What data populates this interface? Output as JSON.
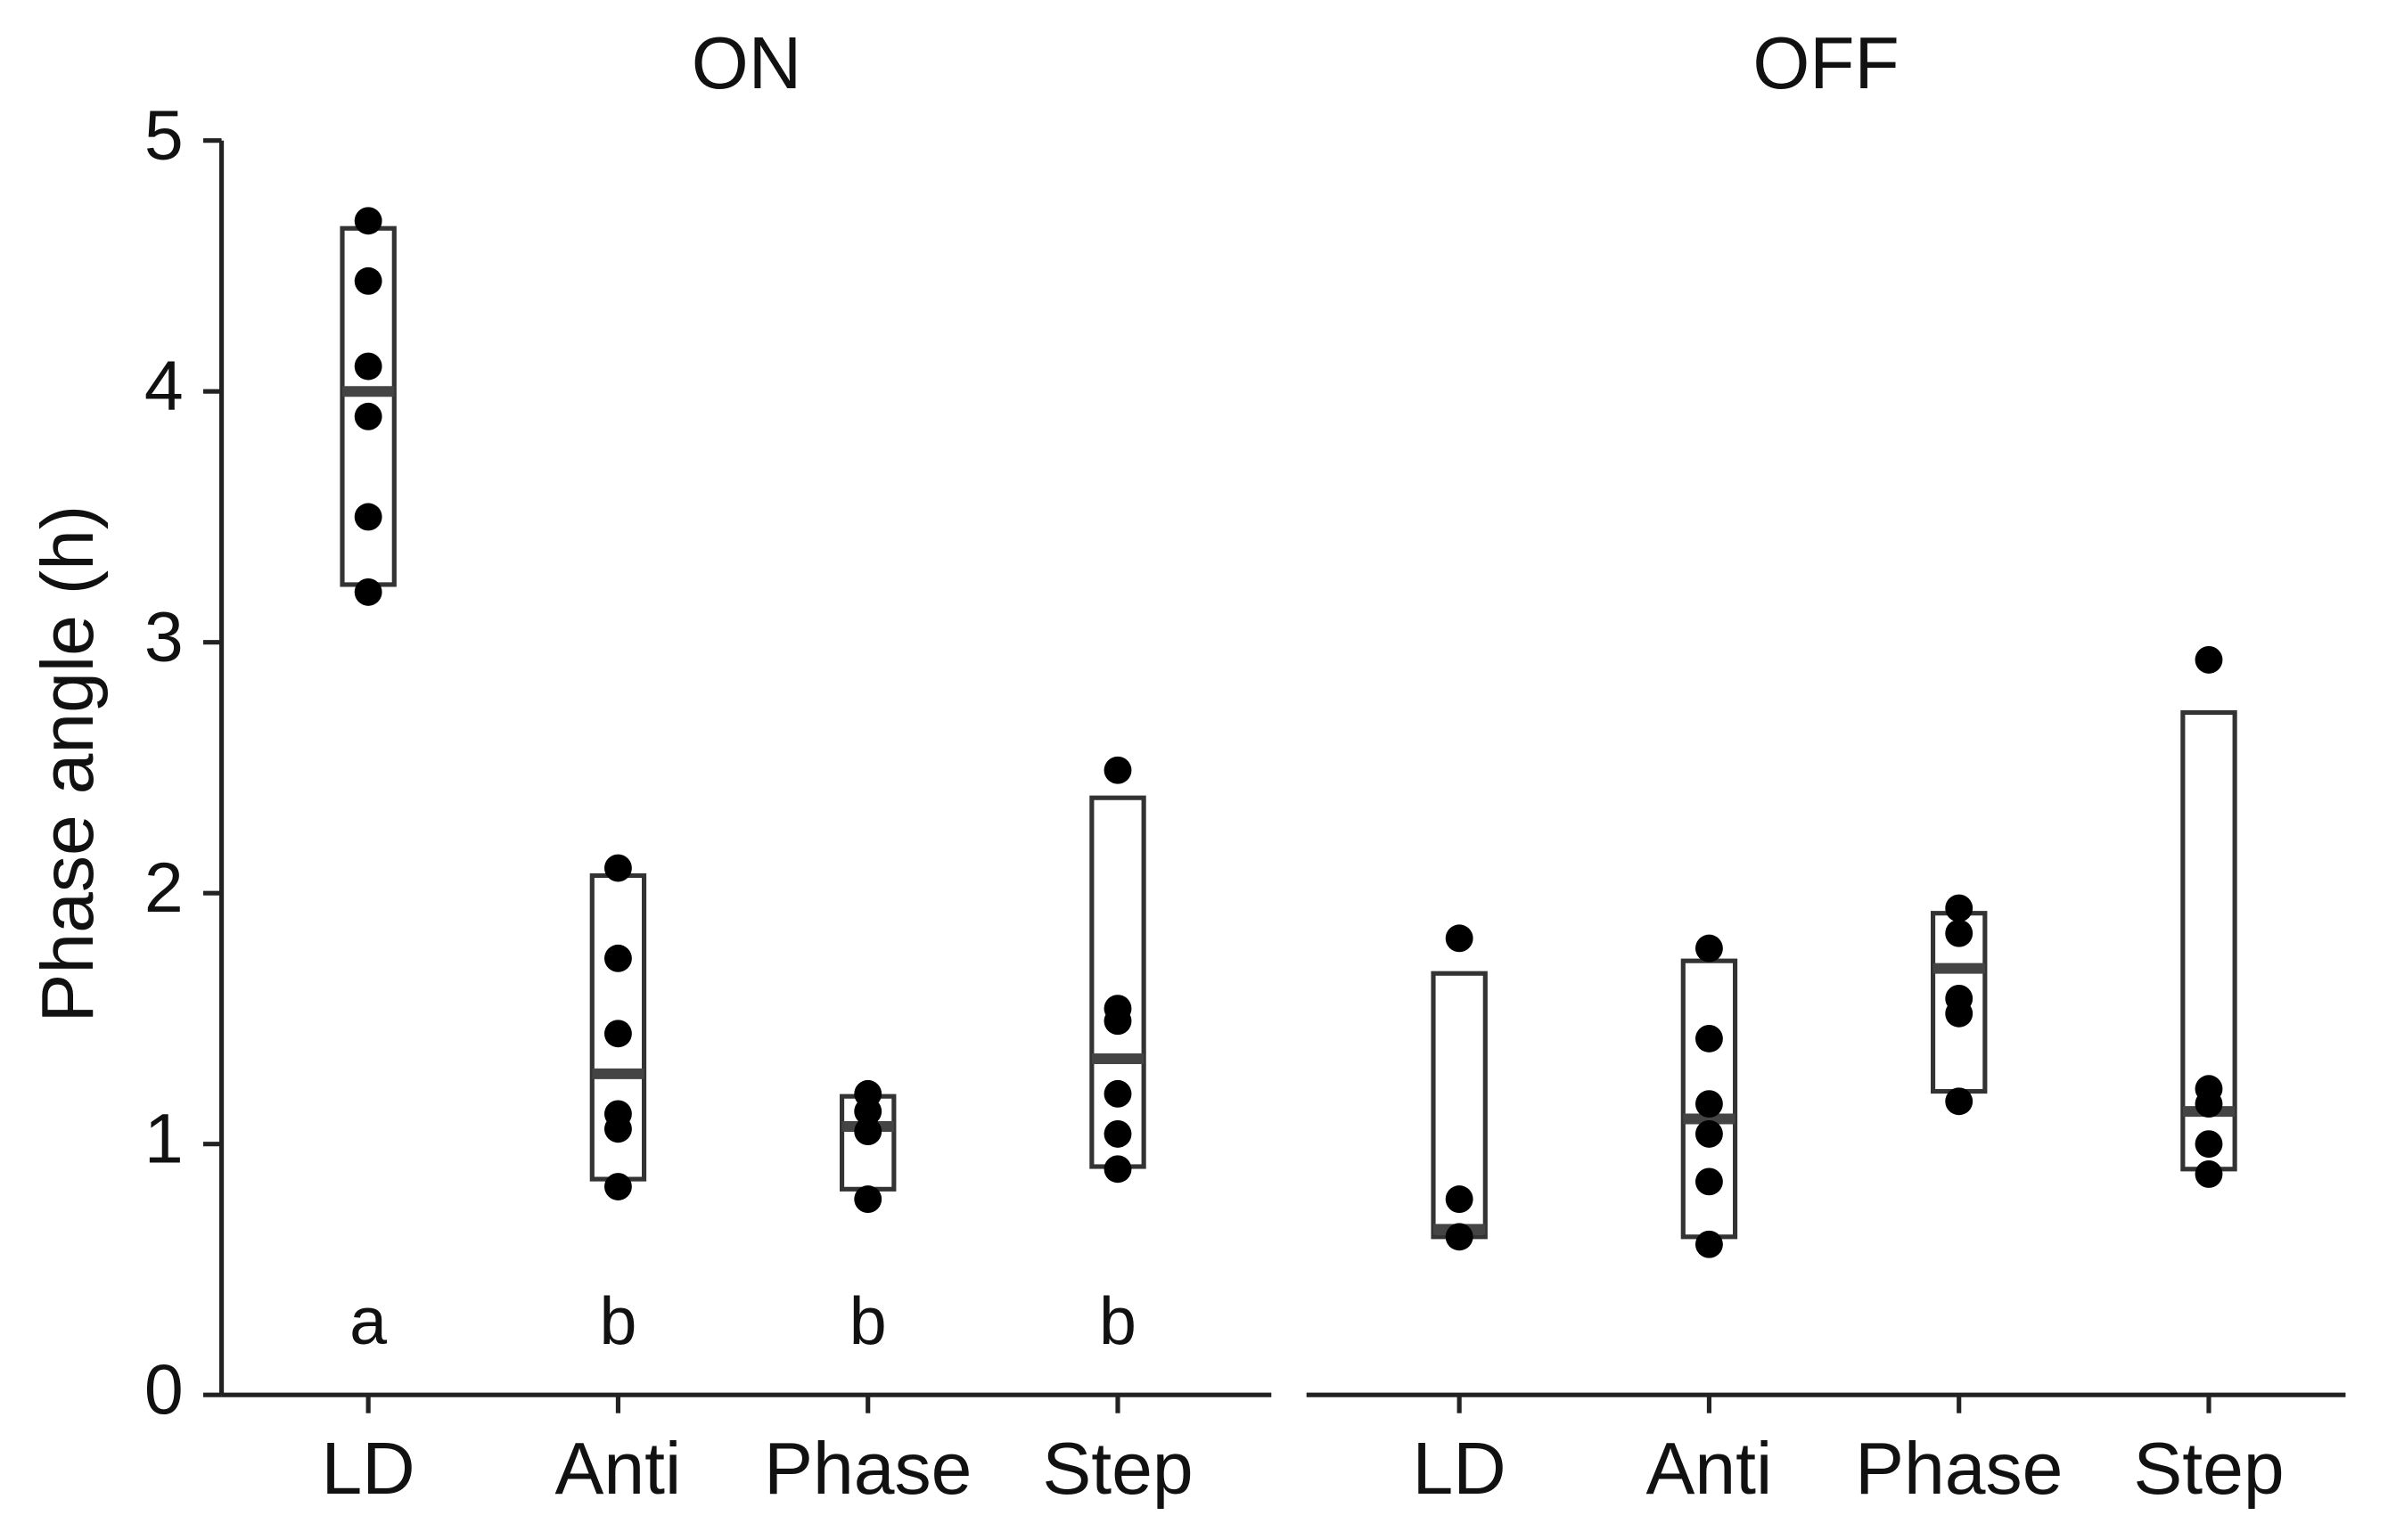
{
  "chart_data": {
    "type": "box",
    "ylabel": "Phase angle (h)",
    "ylim": [
      0,
      5
    ],
    "yticks": [
      0,
      1,
      2,
      3,
      4,
      5
    ],
    "panels": [
      {
        "title": "ON",
        "categories": [
          "LD",
          "Anti",
          "Phase",
          "Step"
        ],
        "letters": [
          "a",
          "b",
          "b",
          "b"
        ],
        "boxes": [
          {
            "low": 3.23,
            "high": 4.65,
            "median": 4.0,
            "points": [
              4.68,
              4.44,
              4.1,
              3.9,
              3.5,
              3.2
            ]
          },
          {
            "low": 0.86,
            "high": 2.07,
            "median": 1.28,
            "points": [
              2.1,
              1.74,
              1.44,
              1.12,
              1.06,
              0.83
            ]
          },
          {
            "low": 0.82,
            "high": 1.19,
            "median": 1.07,
            "points": [
              1.2,
              1.13,
              1.05,
              0.78
            ]
          },
          {
            "low": 0.91,
            "high": 2.38,
            "median": 1.34,
            "points": [
              2.49,
              1.54,
              1.49,
              1.2,
              1.04,
              0.9
            ]
          }
        ]
      },
      {
        "title": "OFF",
        "categories": [
          "LD",
          "Anti",
          "Phase",
          "Step"
        ],
        "boxes": [
          {
            "low": 0.63,
            "high": 1.68,
            "median": 0.66,
            "points": [
              1.82,
              0.78,
              0.63
            ]
          },
          {
            "low": 0.63,
            "high": 1.73,
            "median": 1.1,
            "points": [
              1.78,
              1.42,
              1.16,
              1.04,
              0.85,
              0.6
            ]
          },
          {
            "low": 1.21,
            "high": 1.92,
            "median": 1.7,
            "points": [
              1.94,
              1.84,
              1.58,
              1.52,
              1.17
            ]
          },
          {
            "low": 0.9,
            "high": 2.72,
            "median": 1.13,
            "points": [
              2.93,
              1.22,
              1.16,
              1.0,
              0.88
            ]
          }
        ]
      }
    ]
  }
}
